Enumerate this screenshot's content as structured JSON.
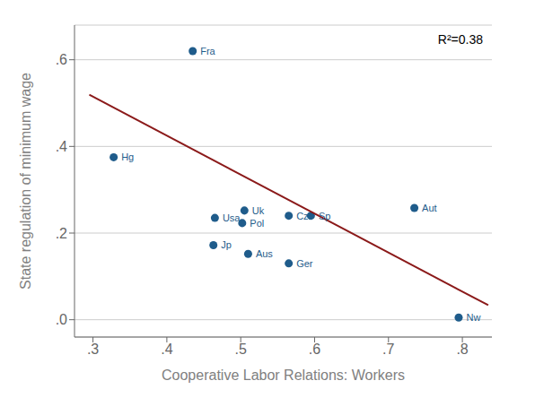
{
  "chart_data": {
    "type": "scatter",
    "xlabel": "Cooperative Labor Relations: Workers",
    "ylabel": "State regulation of minimum wage",
    "xlim": [
      0.275,
      0.84
    ],
    "ylim": [
      -0.04,
      0.68
    ],
    "xticks": [
      {
        "value": 0.3,
        "label": ".3"
      },
      {
        "value": 0.4,
        "label": ".4"
      },
      {
        "value": 0.5,
        "label": ".5"
      },
      {
        "value": 0.6,
        "label": ".6"
      },
      {
        "value": 0.7,
        "label": ".7"
      },
      {
        "value": 0.8,
        "label": ".8"
      }
    ],
    "yticks": [
      {
        "value": 0.0,
        "label": ".0"
      },
      {
        "value": 0.2,
        "label": ".2"
      },
      {
        "value": 0.4,
        "label": ".4"
      },
      {
        "value": 0.6,
        "label": ".6"
      }
    ],
    "grid": "y",
    "annotations": [
      "R²=0.38"
    ],
    "series": [
      {
        "type": "scatter",
        "color": "#1F5C8B",
        "x": [
          0.435,
          0.328,
          0.465,
          0.505,
          0.502,
          0.565,
          0.595,
          0.735,
          0.463,
          0.51,
          0.565,
          0.795
        ],
        "values": [
          0.62,
          0.375,
          0.235,
          0.252,
          0.223,
          0.24,
          0.24,
          0.258,
          0.172,
          0.152,
          0.13,
          0.005
        ],
        "labels": [
          "Fra",
          "Hg",
          "Usa",
          "Uk",
          "Pol",
          "Czr",
          "Sp",
          "Aut",
          "Jp",
          "Aus",
          "Ger",
          "Nw"
        ]
      },
      {
        "type": "line",
        "color": "#8B1A1A",
        "x": [
          0.295,
          0.835
        ],
        "values": [
          0.5195,
          0.0335
        ]
      }
    ]
  }
}
